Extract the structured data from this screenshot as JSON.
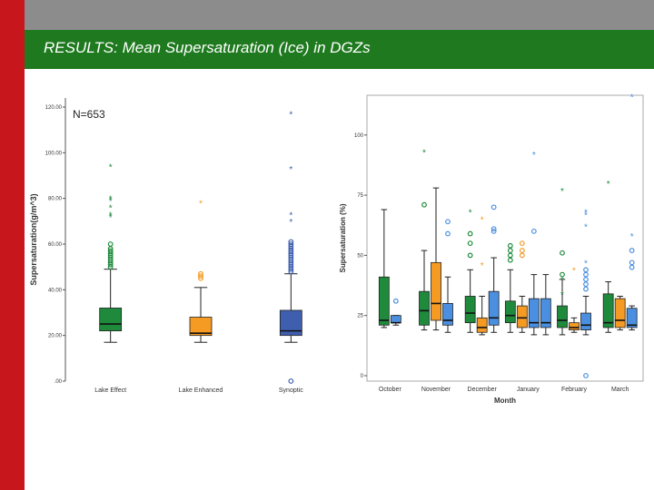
{
  "slide": {
    "title": "RESULTS: Mean Supersaturation (Ice) in DGZs"
  },
  "colors": {
    "green": "#1f8a3c",
    "orange": "#f59a23",
    "blue": "#3f5fae",
    "lightblue": "#4a8fe0",
    "red_bar": "#c8161d",
    "title_band": "#1f7a1f"
  },
  "chart_data": [
    {
      "type": "box",
      "annotation": "N=653",
      "ylabel": "Supersaturation(g/m^3)",
      "xlabel": "",
      "ylim": [
        0,
        120
      ],
      "y_ticks": [
        0,
        20,
        40,
        60,
        80,
        100,
        120
      ],
      "y_tick_labels": [
        ".00",
        "20.00",
        "40.00",
        "60.00",
        "80.00",
        "100.00",
        "120.00"
      ],
      "categories": [
        "Lake Effect",
        "Lake Enhanced",
        "Synoptic"
      ],
      "boxes": [
        {
          "category": "Lake Effect",
          "color": "green",
          "whisker_low": 17,
          "q1": 22,
          "median": 25,
          "q3": 32,
          "whisker_high": 49,
          "outliers_circle": [
            50,
            51,
            52,
            53,
            54,
            55,
            56,
            57,
            58,
            60
          ],
          "outliers_star": [
            72,
            73,
            76,
            79,
            80,
            94
          ]
        },
        {
          "category": "Lake Enhanced",
          "color": "orange",
          "whisker_low": 17,
          "q1": 20,
          "median": 21,
          "q3": 28,
          "whisker_high": 41,
          "outliers_circle": [
            45,
            46,
            47
          ],
          "outliers_star": [
            78
          ]
        },
        {
          "category": "Synoptic",
          "color": "blue",
          "whisker_low": 17,
          "q1": 20,
          "median": 22,
          "q3": 31,
          "whisker_high": 47,
          "outliers_circle": [
            0,
            48,
            49,
            50,
            51,
            52,
            53,
            54,
            55,
            56,
            57,
            58,
            59,
            60,
            61
          ],
          "outliers_star": [
            70,
            73,
            93,
            117
          ]
        }
      ]
    },
    {
      "type": "box",
      "ylabel": "Supersaturation (%)",
      "xlabel": "Month",
      "ylim": [
        0,
        115
      ],
      "y_ticks": [
        0,
        25,
        50,
        75,
        100
      ],
      "y_tick_labels": [
        "0",
        "25",
        "50",
        "75",
        "100"
      ],
      "categories": [
        "October",
        "November",
        "December",
        "January",
        "February",
        "March"
      ],
      "groups": [
        {
          "month": "October",
          "boxes": [
            {
              "color": "green",
              "whisker_low": 20,
              "q1": 21,
              "median": 23,
              "q3": 41,
              "whisker_high": 69,
              "outliers_circle": [],
              "outliers_star": []
            },
            {
              "color": "lightblue",
              "whisker_low": 21,
              "q1": 22,
              "median": 22,
              "q3": 25,
              "whisker_high": 25,
              "outliers_circle": [
                31
              ],
              "outliers_star": []
            }
          ]
        },
        {
          "month": "November",
          "boxes": [
            {
              "color": "green",
              "whisker_low": 19,
              "q1": 21,
              "median": 27,
              "q3": 35,
              "whisker_high": 52,
              "outliers_circle": [
                71
              ],
              "outliers_star": [
                93
              ]
            },
            {
              "color": "orange",
              "whisker_low": 19,
              "q1": 23,
              "median": 30,
              "q3": 47,
              "whisker_high": 78,
              "outliers_circle": [],
              "outliers_star": []
            },
            {
              "color": "lightblue",
              "whisker_low": 18,
              "q1": 21,
              "median": 23,
              "q3": 30,
              "whisker_high": 41,
              "outliers_circle": [
                59,
                64
              ],
              "outliers_star": []
            }
          ]
        },
        {
          "month": "December",
          "boxes": [
            {
              "color": "green",
              "whisker_low": 18,
              "q1": 22,
              "median": 26,
              "q3": 33,
              "whisker_high": 44,
              "outliers_circle": [
                50,
                55,
                59
              ],
              "outliers_star": [
                68
              ]
            },
            {
              "color": "orange",
              "whisker_low": 17,
              "q1": 18,
              "median": 20,
              "q3": 24,
              "whisker_high": 33,
              "outliers_circle": [],
              "outliers_star": [
                46,
                65
              ]
            },
            {
              "color": "lightblue",
              "whisker_low": 18,
              "q1": 21,
              "median": 24,
              "q3": 35,
              "whisker_high": 49,
              "outliers_circle": [
                60,
                61,
                70
              ],
              "outliers_star": []
            }
          ]
        },
        {
          "month": "January",
          "boxes": [
            {
              "color": "green",
              "whisker_low": 18,
              "q1": 22,
              "median": 25,
              "q3": 31,
              "whisker_high": 44,
              "outliers_circle": [
                48,
                50,
                52,
                54
              ],
              "outliers_star": []
            },
            {
              "color": "orange",
              "whisker_low": 18,
              "q1": 20,
              "median": 24,
              "q3": 29,
              "whisker_high": 33,
              "outliers_circle": [
                50,
                52,
                55
              ],
              "outliers_star": []
            },
            {
              "color": "lightblue",
              "whisker_low": 17,
              "q1": 20,
              "median": 22,
              "q3": 32,
              "whisker_high": 42,
              "outliers_circle": [
                60
              ],
              "outliers_star": [
                92
              ]
            },
            {
              "color": "lightblue",
              "whisker_low": 17,
              "q1": 20,
              "median": 22,
              "q3": 32,
              "whisker_high": 42,
              "outliers_circle": [],
              "outliers_star": []
            }
          ]
        },
        {
          "month": "February",
          "boxes": [
            {
              "color": "green",
              "whisker_low": 17,
              "q1": 20,
              "median": 23,
              "q3": 29,
              "whisker_high": 40,
              "outliers_circle": [
                42,
                51
              ],
              "outliers_star": [
                34,
                40,
                77
              ]
            },
            {
              "color": "orange",
              "whisker_low": 18,
              "q1": 19,
              "median": 20,
              "q3": 22,
              "whisker_high": 24,
              "outliers_circle": [],
              "outliers_star": [
                44
              ]
            },
            {
              "color": "lightblue",
              "whisker_low": 17,
              "q1": 19,
              "median": 21,
              "q3": 26,
              "whisker_high": 33,
              "outliers_circle": [
                0,
                36,
                38,
                40,
                42,
                44
              ],
              "outliers_star": [
                47,
                62,
                67,
                68
              ]
            }
          ]
        },
        {
          "month": "March",
          "boxes": [
            {
              "color": "green",
              "whisker_low": 18,
              "q1": 20,
              "median": 22,
              "q3": 34,
              "whisker_high": 39,
              "outliers_circle": [],
              "outliers_star": [
                80
              ]
            },
            {
              "color": "orange",
              "whisker_low": 19,
              "q1": 20,
              "median": 23,
              "q3": 32,
              "whisker_high": 33,
              "outliers_circle": [],
              "outliers_star": []
            },
            {
              "color": "lightblue",
              "whisker_low": 19,
              "q1": 20,
              "median": 21,
              "q3": 28,
              "whisker_high": 29,
              "outliers_circle": [
                45,
                47,
                52
              ],
              "outliers_star": [
                58,
                116
              ]
            }
          ]
        }
      ]
    }
  ]
}
